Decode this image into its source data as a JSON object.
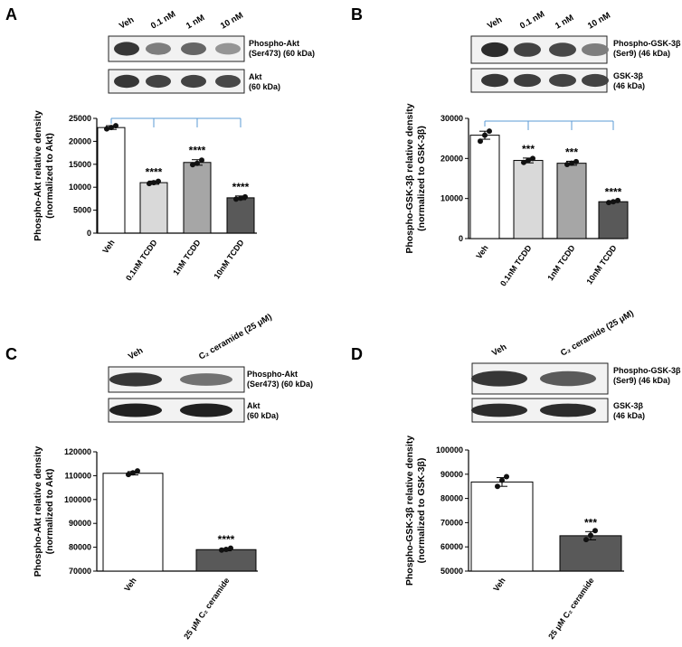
{
  "panels": [
    {
      "letter": "A",
      "blot": {
        "columns": [
          "Veh",
          "0.1 nM",
          "1 nM",
          "10 nM"
        ],
        "rows": [
          {
            "label_lines": [
              "Phospho-Akt",
              "(Ser473) (60 kDa)"
            ],
            "intensity": [
              0.85,
              0.55,
              0.65,
              0.45
            ]
          },
          {
            "label_lines": [
              "Akt",
              "(60 kDa)"
            ],
            "intensity": [
              0.85,
              0.8,
              0.8,
              0.78
            ]
          }
        ]
      },
      "chart": {
        "ylabel_lines": [
          "Phospho-Akt relative density",
          "(normalized to Akt)"
        ],
        "yticks": [
          "0",
          "5000",
          "10000",
          "15000",
          "20000",
          "25000"
        ]
      }
    },
    {
      "letter": "B",
      "blot": {
        "columns": [
          "Veh",
          "0.1 nM",
          "1 nM",
          "10 nM"
        ],
        "rows": [
          {
            "label_lines": [
              "Phospho-GSK-3β",
              "(Ser9) (46 kDa)"
            ],
            "intensity": [
              0.9,
              0.8,
              0.78,
              0.55
            ]
          },
          {
            "label_lines": [
              "GSK-3β",
              "(46 kDa)"
            ],
            "intensity": [
              0.85,
              0.82,
              0.8,
              0.8
            ]
          }
        ]
      },
      "chart": {
        "ylabel_lines": [
          "Phospho-GSK-3β relative density",
          "(normalized to GSK-3β)"
        ],
        "yticks": [
          "0",
          "10000",
          "20000",
          "30000"
        ]
      }
    },
    {
      "letter": "C",
      "blot": {
        "columns": [
          "Veh",
          "C₂ ceramide (25 μM)"
        ],
        "rows": [
          {
            "label_lines": [
              "Phospho-Akt",
              "(Ser473) (60 kDa)"
            ],
            "intensity": [
              0.85,
              0.6
            ]
          },
          {
            "label_lines": [
              "Akt",
              "(60 kDa)"
            ],
            "intensity": [
              0.95,
              0.95
            ]
          }
        ]
      },
      "chart": {
        "ylabel_lines": [
          "Phospho-Akt relative density",
          "(normalized to Akt)"
        ],
        "yticks": [
          "70000",
          "80000",
          "90000",
          "100000",
          "110000",
          "120000"
        ]
      }
    },
    {
      "letter": "D",
      "blot": {
        "columns": [
          "Veh",
          "C₂ ceramide (25 μM)"
        ],
        "rows": [
          {
            "label_lines": [
              "Phospho-GSK-3β",
              "(Ser9) (46 kDa)"
            ],
            "intensity": [
              0.85,
              0.7
            ]
          },
          {
            "label_lines": [
              "GSK-3β",
              "(46 kDa)"
            ],
            "intensity": [
              0.9,
              0.9
            ]
          }
        ]
      },
      "chart": {
        "ylabel_lines": [
          "Phospho-GSK-3β relative density",
          "(normalized to GSK-3β)"
        ],
        "yticks": [
          "50000",
          "60000",
          "70000",
          "80000",
          "90000",
          "100000"
        ]
      }
    }
  ],
  "chart_data": [
    {
      "type": "bar",
      "panel": "A",
      "categories": [
        "Veh",
        "0.1nM TCDD",
        "1nM TCDD",
        "10nM TCDD"
      ],
      "values": [
        23000,
        11000,
        15400,
        7700
      ],
      "errors": [
        400,
        350,
        600,
        400
      ],
      "points": [
        [
          22700,
          23000,
          23400
        ],
        [
          10800,
          11000,
          11300
        ],
        [
          14900,
          15200,
          15900
        ],
        [
          7400,
          7600,
          7900
        ]
      ],
      "significance": [
        "",
        "****",
        "****",
        "****"
      ],
      "fills": [
        "#ffffff",
        "#d9d9d9",
        "#a6a6a6",
        "#595959"
      ],
      "ylabel": "Phospho-Akt relative density (normalized to Akt)",
      "ylim": [
        0,
        25000
      ],
      "bracket_color": "#5b9bd5"
    },
    {
      "type": "bar",
      "panel": "B",
      "categories": [
        "Veh",
        "0.1nM TCDD",
        "1nM TCDD",
        "10nM TCDD"
      ],
      "values": [
        25800,
        19500,
        18800,
        9200
      ],
      "errors": [
        1000,
        600,
        500,
        200
      ],
      "points": [
        [
          24300,
          25800,
          26800
        ],
        [
          19000,
          19500,
          20000
        ],
        [
          18500,
          18800,
          19200
        ],
        [
          9000,
          9200,
          9500
        ]
      ],
      "significance": [
        "",
        "***",
        "***",
        "****"
      ],
      "fills": [
        "#ffffff",
        "#d9d9d9",
        "#a6a6a6",
        "#595959"
      ],
      "ylabel": "Phospho-GSK-3β relative density (normalized to GSK-3β)",
      "ylim": [
        0,
        30000
      ],
      "bracket_color": "#5b9bd5"
    },
    {
      "type": "bar",
      "panel": "C",
      "categories": [
        "Veh",
        "25 μM C₂ ceramide"
      ],
      "values": [
        111000,
        79000
      ],
      "errors": [
        700,
        500
      ],
      "points": [
        [
          110500,
          111200,
          112000
        ],
        [
          78800,
          79100,
          79600
        ]
      ],
      "significance": [
        "",
        "****"
      ],
      "fills": [
        "#ffffff",
        "#595959"
      ],
      "ylabel": "Phospho-Akt relative density (normalized to Akt)",
      "ylim": [
        70000,
        120000
      ]
    },
    {
      "type": "bar",
      "panel": "D",
      "categories": [
        "Veh",
        "25 μM C₂ ceramide"
      ],
      "values": [
        86800,
        64600
      ],
      "errors": [
        1800,
        1700
      ],
      "points": [
        [
          85000,
          87500,
          89000
        ],
        [
          63000,
          64800,
          66700
        ]
      ],
      "significance": [
        "",
        "***"
      ],
      "fills": [
        "#ffffff",
        "#595959"
      ],
      "ylabel": "Phospho-GSK-3β relative density (normalized to GSK-3β)",
      "ylim": [
        50000,
        100000
      ]
    }
  ]
}
